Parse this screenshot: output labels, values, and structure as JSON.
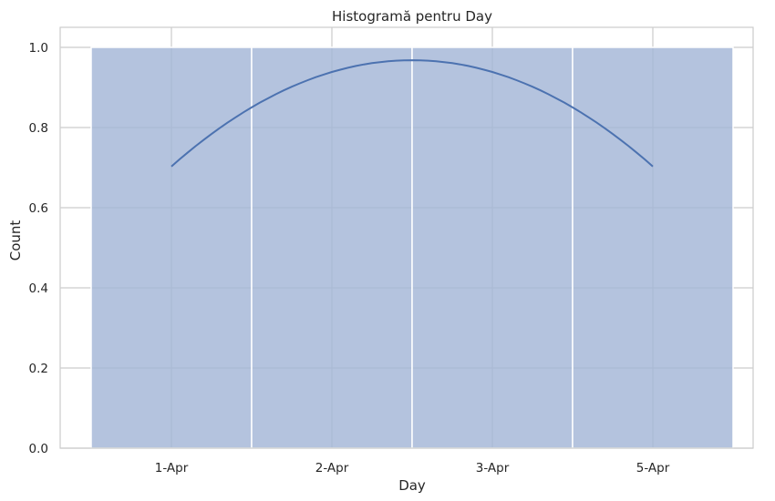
{
  "chart_data": {
    "type": "bar",
    "title": "Histogramă pentru Day",
    "xlabel": "Day",
    "ylabel": "Count",
    "categories": [
      "1-Apr",
      "2-Apr",
      "3-Apr",
      "5-Apr"
    ],
    "values": [
      1,
      1,
      1,
      1
    ],
    "ylim": [
      0,
      1.05
    ],
    "yticks": [
      0.0,
      0.2,
      0.4,
      0.6,
      0.8,
      1.0
    ],
    "ytick_labels": [
      "0.0",
      "0.2",
      "0.4",
      "0.6",
      "0.8",
      "1.0"
    ],
    "grid": true,
    "kde": {
      "x": [
        "1-Apr",
        "2-Apr",
        "3-Apr",
        "5-Apr"
      ],
      "y": [
        0.703,
        0.943,
        0.943,
        0.703
      ],
      "peak": 0.968
    },
    "colors": {
      "bar_fill": "#a4b6d7",
      "kde_line": "#4c72b0",
      "grid": "#cccccc",
      "bar_edge": "#ffffff",
      "axes_edge": "#cccccc",
      "text": "#262626"
    }
  }
}
